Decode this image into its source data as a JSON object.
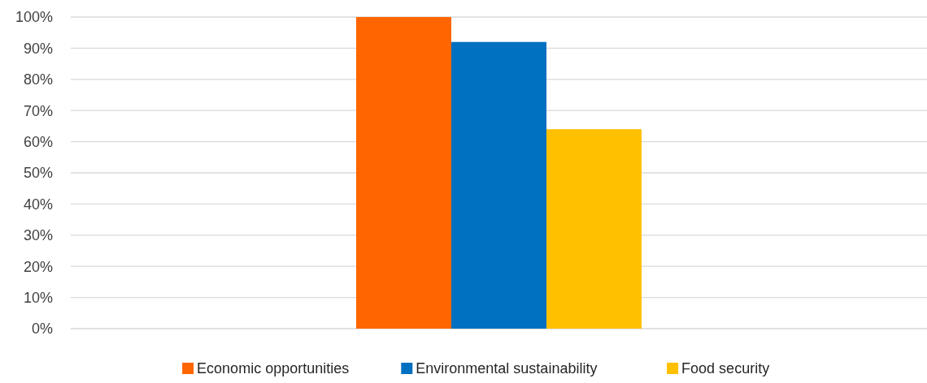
{
  "chart_data": {
    "type": "bar",
    "categories": [
      null
    ],
    "series": [
      {
        "name": "Economic opportunities",
        "color": "#ff6600",
        "values": [
          100
        ]
      },
      {
        "name": "Environmental sustainability",
        "color": "#0070c0",
        "values": [
          92
        ]
      },
      {
        "name": "Food security",
        "color": "#ffc000",
        "values": [
          64
        ]
      }
    ],
    "ylim": [
      0,
      100
    ],
    "yticks": [
      {
        "value": 0,
        "label": "0%"
      },
      {
        "value": 10,
        "label": "10%"
      },
      {
        "value": 20,
        "label": "20%"
      },
      {
        "value": 30,
        "label": "30%"
      },
      {
        "value": 40,
        "label": "40%"
      },
      {
        "value": 50,
        "label": "50%"
      },
      {
        "value": 60,
        "label": "60%"
      },
      {
        "value": 70,
        "label": "70%"
      },
      {
        "value": 80,
        "label": "80%"
      },
      {
        "value": 90,
        "label": "90%"
      },
      {
        "value": 100,
        "label": "100%"
      }
    ],
    "grid": "y",
    "legend": "bottom"
  }
}
